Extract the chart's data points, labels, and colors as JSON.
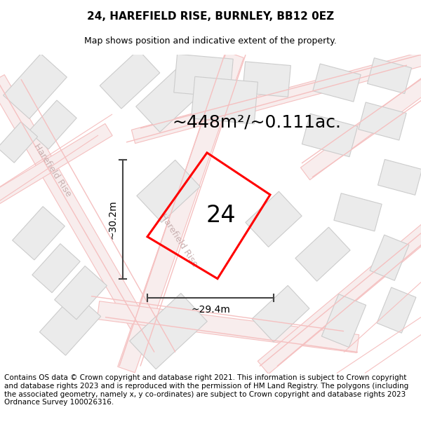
{
  "title": "24, HAREFIELD RISE, BURNLEY, BB12 0EZ",
  "subtitle": "Map shows position and indicative extent of the property.",
  "area_label": "~448m²/~0.111ac.",
  "plot_number": "24",
  "width_label": "~29.4m",
  "height_label": "~30.2m",
  "footer": "Contains OS data © Crown copyright and database right 2021. This information is subject to Crown copyright and database rights 2023 and is reproduced with the permission of HM Land Registry. The polygons (including the associated geometry, namely x, y co-ordinates) are subject to Crown copyright and database rights 2023 Ordnance Survey 100026316.",
  "bg_color": "#ffffff",
  "plot_color": "#ff0000",
  "road_color": "#f5c0c0",
  "road_edge_color": "#e8a8a8",
  "building_fill": "#ebebeb",
  "building_edge": "#cccccc",
  "road_label_color": "#c8b0b0",
  "title_fontsize": 11,
  "subtitle_fontsize": 9,
  "footer_fontsize": 7.5,
  "area_fontsize": 18,
  "plot_num_fontsize": 24,
  "measure_fontsize": 10
}
